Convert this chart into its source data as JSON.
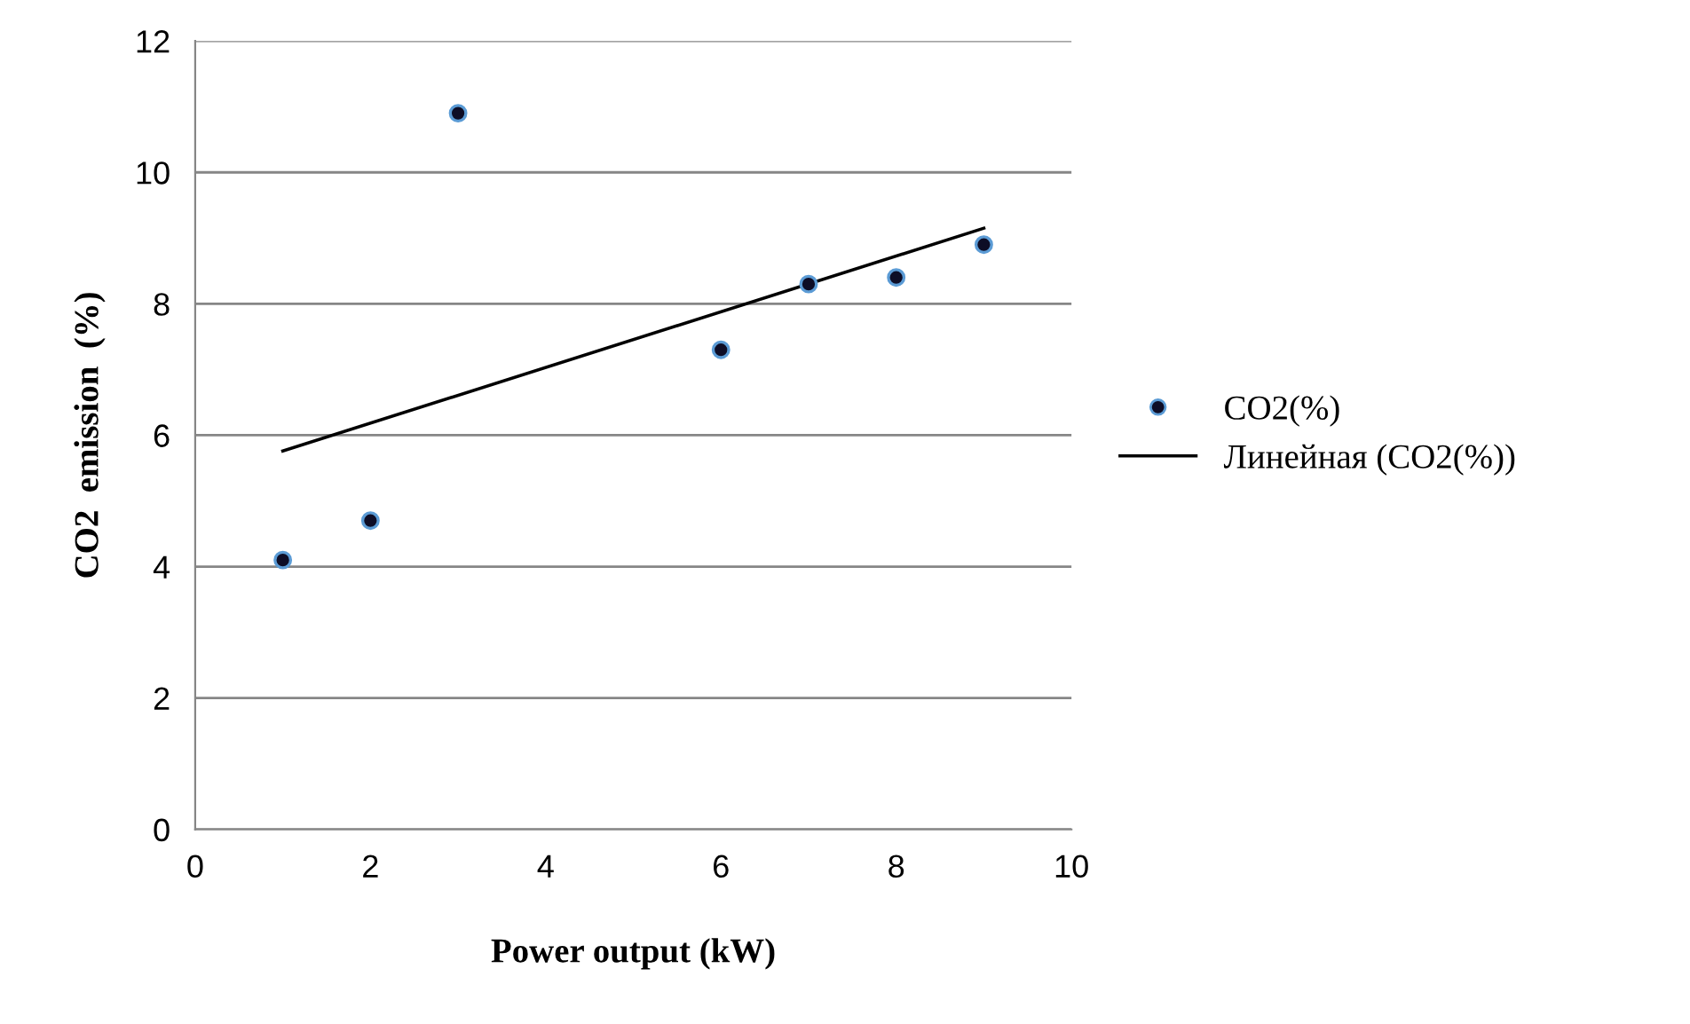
{
  "chart_data": {
    "type": "scatter",
    "xlabel": "Power output (kW)",
    "ylabel": "CO2  emission  (%)",
    "series": [
      {
        "name": "CO2(%)",
        "color": "#0d0d26",
        "marker": "circle",
        "x": [
          1,
          2,
          3,
          6,
          7,
          8,
          9
        ],
        "values": [
          4.1,
          4.7,
          10.9,
          7.3,
          8.3,
          8.4,
          8.9
        ]
      },
      {
        "name": "Линейная (CO2(%))",
        "type": "line",
        "color": "#000000",
        "line_style": "solid",
        "x": [
          1,
          9
        ],
        "values": [
          5.76,
          9.15
        ]
      }
    ],
    "xlim": [
      0,
      10
    ],
    "xticks": [
      0,
      2,
      4,
      6,
      8,
      10
    ],
    "ylim": [
      0,
      12
    ],
    "yticks": [
      0,
      2,
      4,
      6,
      8,
      10,
      12
    ],
    "grid": "y",
    "legend": "right"
  }
}
